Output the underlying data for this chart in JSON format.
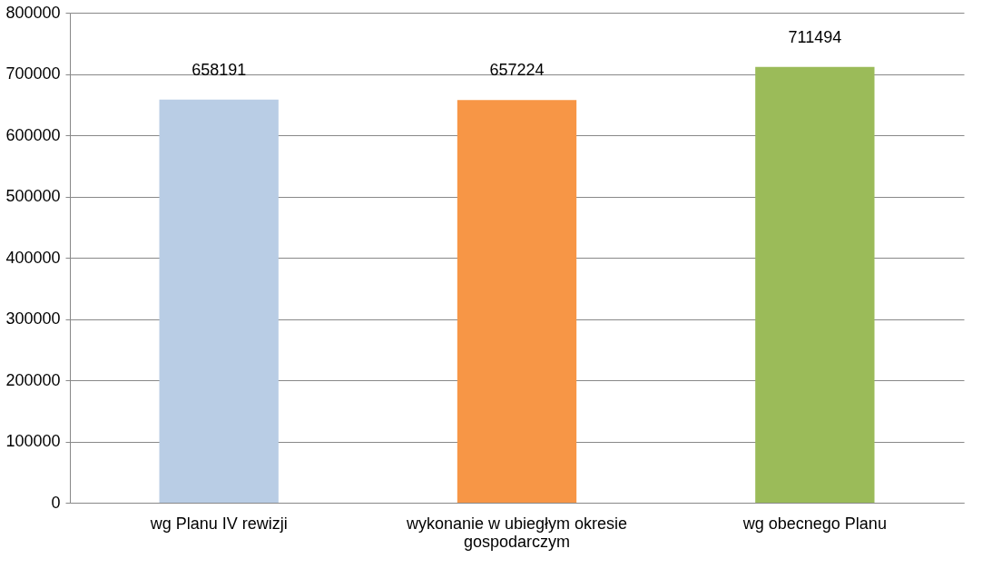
{
  "chart_data": {
    "type": "bar",
    "categories": [
      "wg Planu IV rewizji",
      "wykonanie w ubiegłym okresie gospodarczym",
      "wg obecnego Planu"
    ],
    "values": [
      658191,
      657224,
      711494
    ],
    "colors": [
      "#b9cde5",
      "#f79646",
      "#9bbb59"
    ],
    "ylim": [
      0,
      800000
    ],
    "yticks": [
      0,
      100000,
      200000,
      300000,
      400000,
      500000,
      600000,
      700000,
      800000
    ],
    "grid": "y",
    "data_labels": true
  }
}
